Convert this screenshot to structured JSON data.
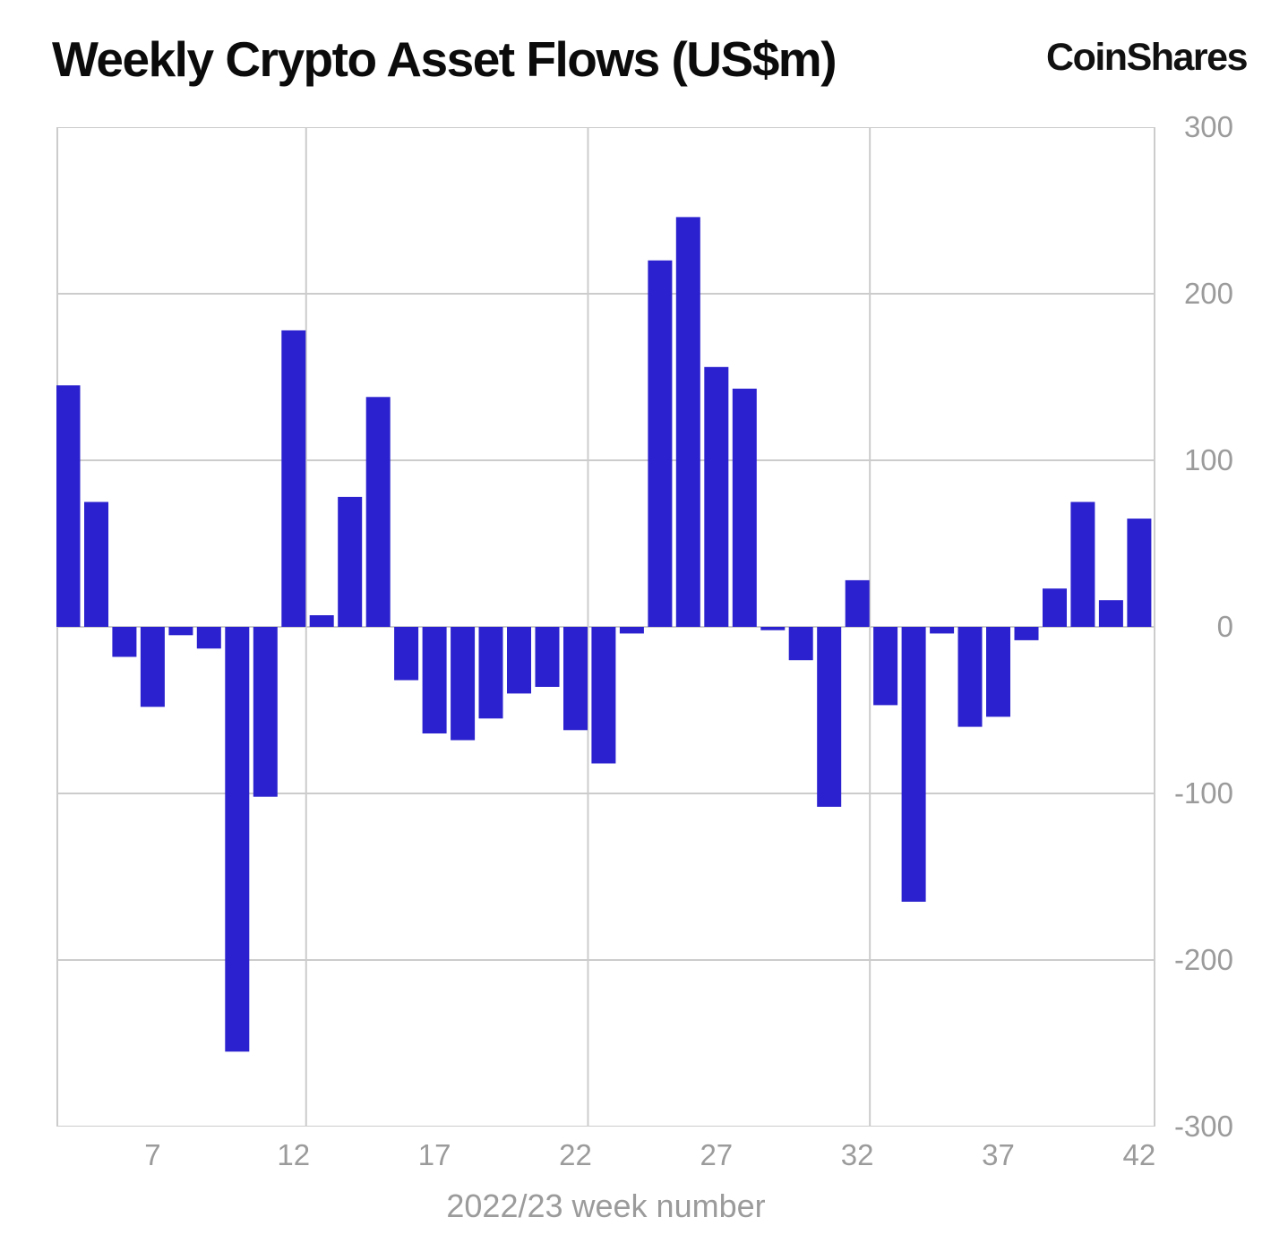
{
  "header": {
    "title": "Weekly Crypto Asset Flows (US$m)",
    "logo": "CoinShares"
  },
  "chart_data": {
    "type": "bar",
    "title": "Weekly Crypto Asset Flows (US$m)",
    "xlabel": "2022/23 week number",
    "ylabel": "",
    "ylim": [
      -300,
      300
    ],
    "y_ticks": [
      300,
      200,
      100,
      0,
      -100,
      -200,
      -300
    ],
    "x_ticks": [
      7,
      12,
      17,
      22,
      27,
      32,
      37,
      42
    ],
    "x_gridline_weeks": [
      12,
      22,
      32
    ],
    "grid_on": true,
    "legend": "none",
    "bar_color": "#2b21ce",
    "grid_color": "#cccccc",
    "axis_text_color": "#9b9b9b",
    "weeks": [
      4,
      5,
      6,
      7,
      8,
      9,
      10,
      11,
      12,
      13,
      14,
      15,
      16,
      17,
      18,
      19,
      20,
      21,
      22,
      23,
      24,
      25,
      26,
      27,
      28,
      29,
      30,
      31,
      32,
      33,
      34,
      35,
      36,
      37,
      38,
      39,
      40,
      41,
      42
    ],
    "values": [
      145,
      75,
      -18,
      -48,
      -5,
      -13,
      -255,
      -102,
      178,
      7,
      78,
      138,
      -32,
      -64,
      -68,
      -55,
      -40,
      -36,
      -62,
      -82,
      -4,
      220,
      246,
      156,
      143,
      -2,
      -20,
      -108,
      28,
      -47,
      -165,
      -4,
      -60,
      -54,
      -8,
      23,
      75,
      16,
      65
    ]
  }
}
